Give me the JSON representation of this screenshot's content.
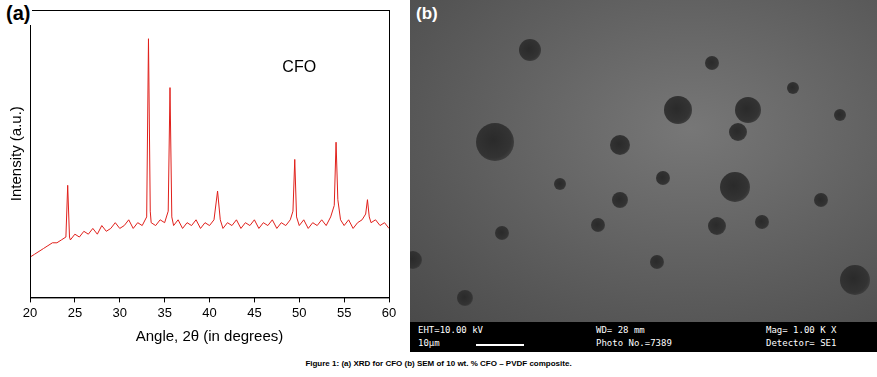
{
  "chart_data": {
    "type": "line",
    "x_label": "Angle, 2θ (in degrees)",
    "y_label": "Intensity (a.u.)",
    "annotation": {
      "text": "CFO",
      "x": 50,
      "y": 80
    },
    "x": [
      20,
      20.5,
      21,
      21.5,
      22,
      22.5,
      23,
      23.5,
      24,
      24.2,
      24.4,
      24.5,
      25,
      25.5,
      26,
      26.5,
      27,
      27.5,
      28,
      28.5,
      29,
      29.5,
      30,
      30.5,
      31,
      31.5,
      32,
      32.5,
      33,
      33.2,
      33.4,
      33.5,
      34,
      34.5,
      35,
      35.4,
      35.6,
      35.8,
      36,
      36.5,
      37,
      37.5,
      38,
      38.5,
      39,
      39.5,
      40,
      40.5,
      40.9,
      41.2,
      41.5,
      42,
      42.5,
      43,
      43.5,
      44,
      44.5,
      45,
      45.5,
      46,
      46.5,
      47,
      47.5,
      48,
      48.5,
      49,
      49.3,
      49.5,
      49.7,
      50,
      50.5,
      51,
      51.5,
      52,
      52.5,
      53,
      53.5,
      53.9,
      54.1,
      54.3,
      54.6,
      55,
      55.5,
      56,
      56.5,
      57,
      57.4,
      57.6,
      57.8,
      58,
      58.5,
      59,
      59.5,
      60
    ],
    "values": [
      14,
      15,
      16,
      17,
      18,
      19,
      19,
      20,
      21,
      39,
      21,
      20,
      22,
      21,
      23,
      22,
      24,
      22,
      25,
      23,
      24,
      26,
      24,
      25,
      27,
      24,
      26,
      25,
      28,
      90,
      30,
      26,
      25,
      27,
      26,
      30,
      73,
      28,
      25,
      27,
      24,
      26,
      25,
      27,
      24,
      26,
      25,
      27,
      37,
      27,
      24,
      26,
      25,
      27,
      24,
      26,
      25,
      27,
      24,
      26,
      25,
      27,
      24,
      26,
      25,
      27,
      30,
      48,
      28,
      25,
      27,
      24,
      26,
      25,
      27,
      25,
      28,
      32,
      54,
      34,
      27,
      25,
      27,
      24,
      26,
      27,
      29,
      34,
      28,
      26,
      27,
      25,
      26,
      24
    ],
    "color": "#e0201b",
    "xlim": [
      20,
      60
    ],
    "xticks": [
      20,
      25,
      30,
      35,
      40,
      45,
      50,
      55,
      60
    ],
    "ylim": [
      0,
      100
    ],
    "grid": false,
    "tick_labels": "x"
  },
  "figure": {
    "panel_labels": [
      "(a)",
      "(b)"
    ],
    "sem_info": [
      [
        "EHT=10.00 kV",
        "10µm"
      ],
      [
        "WD= 28 mm",
        "Photo No.=7389"
      ],
      [
        "Mag= 1.00 K X",
        "Detector= SE1"
      ]
    ],
    "caption": "Figure 1: (a) XRD for CFO (b) SEM of 10 wt. % CFO – PVDF composite."
  }
}
